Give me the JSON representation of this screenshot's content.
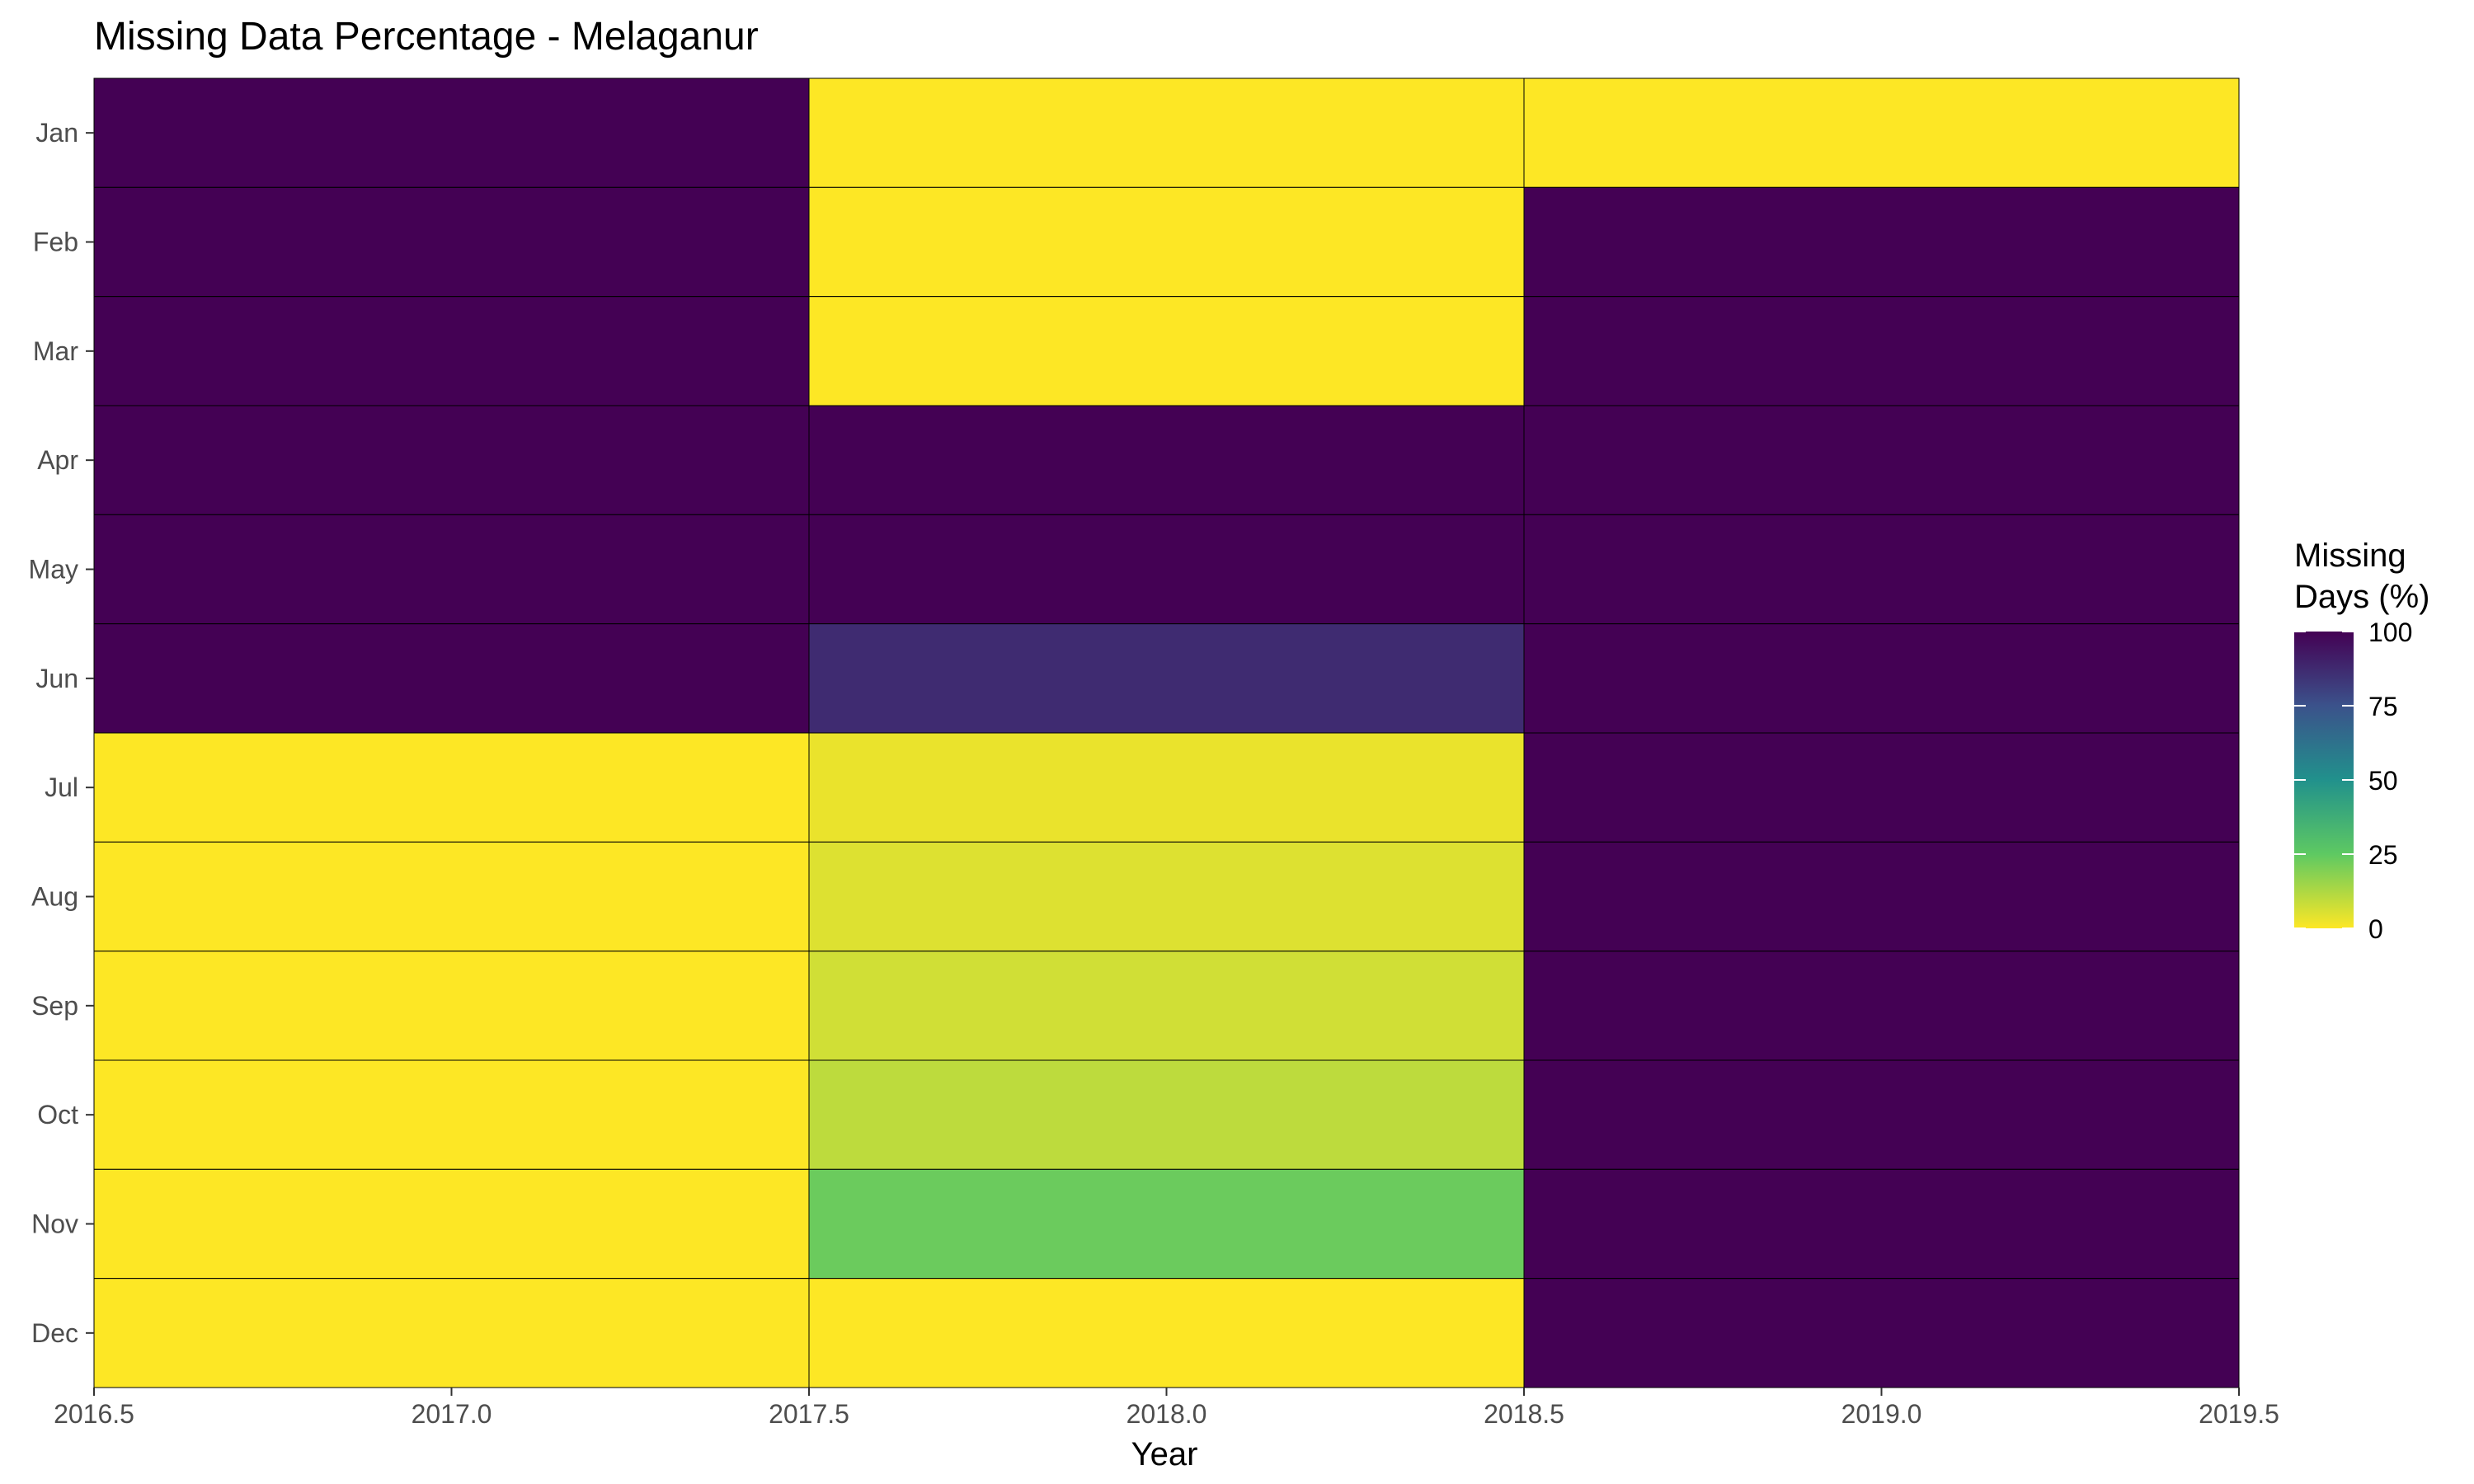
{
  "chart_data": {
    "type": "heatmap",
    "title": "Missing Data Percentage - Melaganur",
    "xlabel": "Year",
    "ylabel": "",
    "xlim": [
      2016.5,
      2019.5
    ],
    "x_ticks": [
      "2016.5",
      "2017.0",
      "2017.5",
      "2018.0",
      "2018.5",
      "2019.0",
      "2019.5"
    ],
    "years": [
      2017,
      2018,
      2019
    ],
    "months": [
      "Jan",
      "Feb",
      "Mar",
      "Apr",
      "May",
      "Jun",
      "Jul",
      "Aug",
      "Sep",
      "Oct",
      "Nov",
      "Dec"
    ],
    "values": [
      [
        100,
        0,
        0
      ],
      [
        100,
        0,
        100
      ],
      [
        100,
        0,
        100
      ],
      [
        100,
        100,
        100
      ],
      [
        100,
        100,
        100
      ],
      [
        100,
        87,
        100
      ],
      [
        0,
        3,
        100
      ],
      [
        0,
        5,
        100
      ],
      [
        0,
        7,
        100
      ],
      [
        0,
        10,
        100
      ],
      [
        0,
        23,
        100
      ],
      [
        0,
        0,
        100
      ]
    ],
    "legend": {
      "title_lines": [
        "Missing",
        "Days (%)"
      ],
      "ticks": [
        "100",
        "75",
        "50",
        "25",
        "0"
      ],
      "position": "right"
    },
    "colormap": "viridis (reversed)",
    "grid": false
  }
}
